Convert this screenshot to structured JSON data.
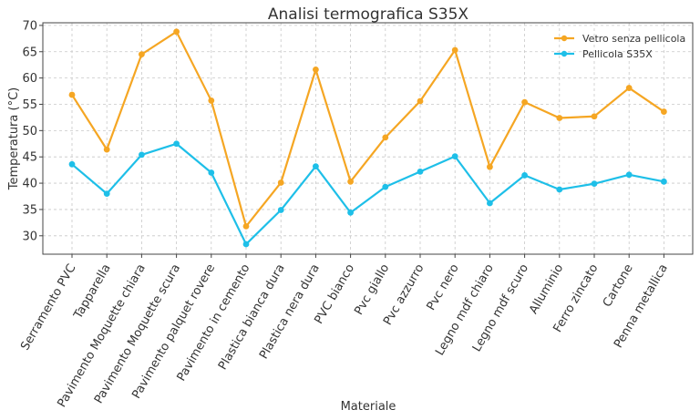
{
  "chart_data": {
    "type": "line",
    "title": "Analisi termografica S35X",
    "xlabel": "Materiale",
    "ylabel": "Temperatura (°C)",
    "ylim": [
      26.5,
      70.5
    ],
    "yticks": [
      30,
      35,
      40,
      45,
      50,
      55,
      60,
      65,
      70
    ],
    "grid": true,
    "legend_position": "top-right",
    "categories": [
      "Serramento PVC",
      "Tapparella",
      "Pavimento Moquette chiara",
      "Pavimento Moquette scura",
      "Pavimento palquet rovere",
      "Pavimento in cemento",
      "Plastica bianca dura",
      "Plastica nera dura",
      "PVC bianco",
      "Pvc giallo",
      "Pvc azzurro",
      "Pvc nero",
      "Legno mdf chiaro",
      "Legno mdf scuro",
      "Alluminio",
      "Ferro zincato",
      "Cartone",
      "Penna metallica"
    ],
    "series": [
      {
        "name": "Vetro senza pellicola",
        "color": "#f5a623",
        "values": [
          56.8,
          46.4,
          64.5,
          68.8,
          55.7,
          31.8,
          40.1,
          61.6,
          40.3,
          48.7,
          55.6,
          65.3,
          43.1,
          55.4,
          52.4,
          52.7,
          58.1,
          53.6
        ]
      },
      {
        "name": "Pellicola S35X",
        "color": "#1ebfe8",
        "values": [
          43.6,
          38.0,
          45.4,
          47.5,
          42.0,
          28.4,
          34.9,
          43.2,
          34.4,
          39.3,
          42.2,
          45.1,
          36.2,
          41.5,
          38.8,
          39.9,
          41.6,
          40.3
        ]
      }
    ]
  }
}
